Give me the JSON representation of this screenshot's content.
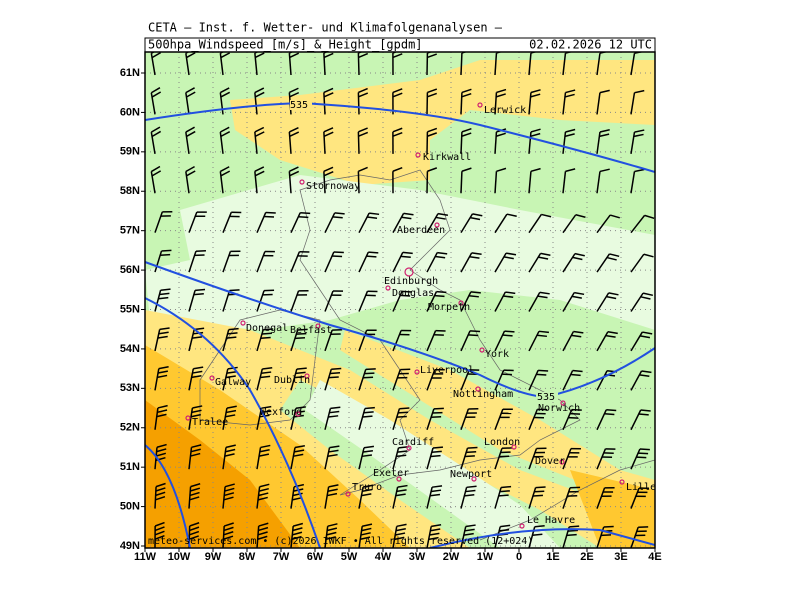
{
  "header": {
    "institute": "CETA – Inst. f. Wetter- und Klimafolgenanalysen –",
    "product": "500hpa_Windspeed_[m/s]_&_Height_[gpdm]",
    "datetime": "02.02.2026 12 UTC"
  },
  "latitude_labels": [
    "61N",
    "60N",
    "59N",
    "58N",
    "57N",
    "56N",
    "55N",
    "54N",
    "53N",
    "52N",
    "51N",
    "50N",
    "49N"
  ],
  "longitude_labels": [
    "11W",
    "10W",
    "9W",
    "8W",
    "7W",
    "6W",
    "5W",
    "4W",
    "3W",
    "2W",
    "1W",
    "0",
    "1E",
    "2E",
    "3E",
    "4E"
  ],
  "cities": [
    "Lerwick",
    "Kirkwall",
    "Stornoway",
    "Aberdeen",
    "Edinburgh",
    "Douglas",
    "Morpeth",
    "Donegal",
    "Belfast",
    "York",
    "Galway",
    "Dublin",
    "Liverpool",
    "Nottingham",
    "Norwich",
    "Wexford",
    "Tralee",
    "Cardiff",
    "London",
    "Dover",
    "Exeter",
    "Newport",
    "Lille",
    "Truro",
    "Le Havre"
  ],
  "contour_labels": [
    "535",
    "535"
  ],
  "footer": "meteo-services.com • (c)2026 IWKF • All rights reserved (12+024)"
}
